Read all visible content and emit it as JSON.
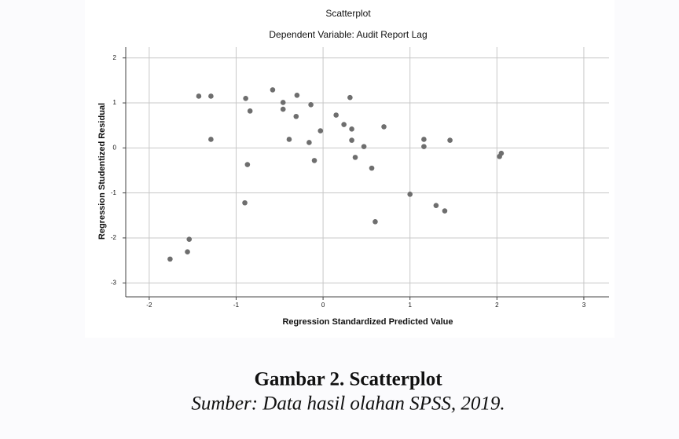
{
  "chart_data": {
    "type": "scatter",
    "title": "Scatterplot",
    "subtitle": "Dependent Variable: Audit Report Lag",
    "xlabel": "Regression Standardized Predicted Value",
    "ylabel": "Regression Studentized Residual",
    "x": [
      -1.76,
      -1.56,
      -1.54,
      -1.43,
      -1.29,
      -1.29,
      -0.89,
      -0.84,
      -0.87,
      -0.9,
      -0.58,
      -0.46,
      -0.46,
      -0.3,
      -0.31,
      -0.39,
      -0.14,
      -0.16,
      -0.1,
      -0.03,
      0.15,
      0.24,
      0.31,
      0.33,
      0.33,
      0.37,
      0.47,
      0.56,
      0.6,
      0.7,
      1.0,
      1.16,
      1.16,
      1.3,
      1.4,
      1.46,
      2.03,
      2.05
    ],
    "y": [
      -2.47,
      -2.31,
      -2.03,
      1.15,
      1.15,
      0.19,
      1.1,
      0.82,
      -0.37,
      -1.22,
      1.29,
      1.01,
      0.86,
      1.17,
      0.7,
      0.19,
      0.96,
      0.12,
      -0.28,
      0.38,
      0.73,
      0.52,
      1.12,
      0.42,
      0.17,
      -0.21,
      0.03,
      -0.45,
      -1.64,
      0.47,
      -1.03,
      0.19,
      0.03,
      -1.28,
      -1.4,
      0.17,
      -0.19,
      -0.12
    ],
    "color": "#6e6e6e",
    "grid": true,
    "xlim": [
      -2.27,
      3.29
    ],
    "xticks": [
      -2,
      -1,
      0,
      1,
      2,
      3
    ],
    "ylim": [
      -3.31,
      2.24
    ],
    "yticks": [
      -3,
      -2,
      -1,
      0,
      1,
      2
    ]
  },
  "caption": {
    "title": "Gambar 2. Scatterplot",
    "source": "Sumber: Data hasil olahan SPSS, 2019."
  }
}
